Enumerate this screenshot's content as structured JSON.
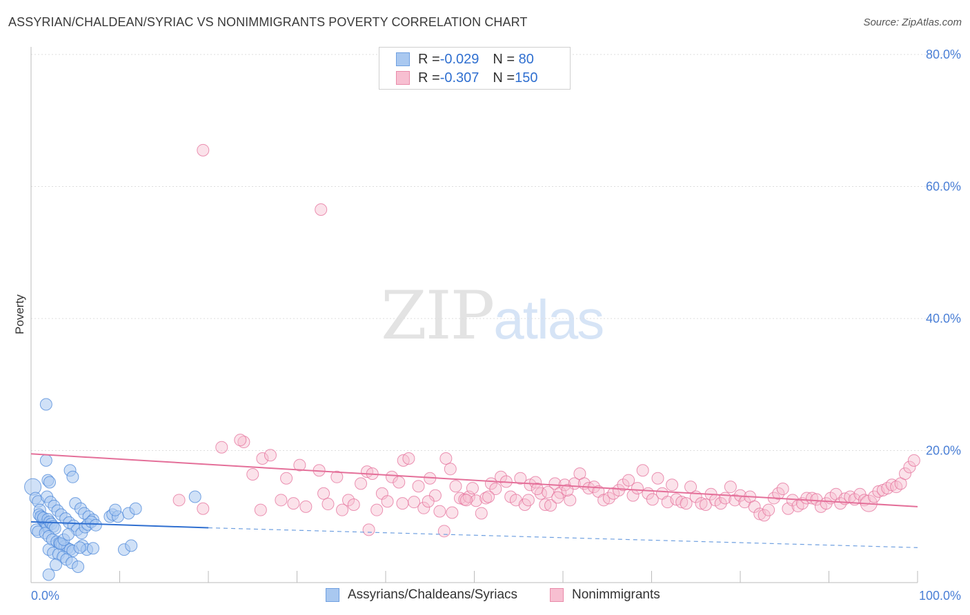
{
  "title": "ASSYRIAN/CHALDEAN/SYRIAC VS NONIMMIGRANTS POVERTY CORRELATION CHART",
  "source": "Source: ZipAtlas.com",
  "watermark": {
    "zip": "ZIP",
    "atlas": "atlas"
  },
  "legend": {
    "rows": [
      {
        "r_label": "R = ",
        "r_value": "-0.029",
        "n_label": "N = ",
        "n_value": " 80",
        "color": "#a9c8f0",
        "border": "#6e9fe0"
      },
      {
        "r_label": "R = ",
        "r_value": "-0.307",
        "n_label": "N = ",
        "n_value": "150",
        "color": "#f7bfd1",
        "border": "#e98aa9"
      }
    ]
  },
  "bottom_legend": [
    {
      "label": "Assyrians/Chaldeans/Syriacs",
      "color": "#a9c8f0",
      "border": "#6e9fe0"
    },
    {
      "label": "Nonimmigrants",
      "color": "#f7bfd1",
      "border": "#e98aa9"
    }
  ],
  "chart_data": {
    "type": "scatter",
    "title": "ASSYRIAN/CHALDEAN/SYRIAC VS NONIMMIGRANTS POVERTY CORRELATION CHART",
    "xlabel": "",
    "ylabel": "Poverty",
    "xlim": [
      0,
      100
    ],
    "ylim": [
      0,
      80
    ],
    "x_tick_labels": [
      {
        "value": 0,
        "label": "0.0%"
      },
      {
        "value": 100,
        "label": "100.0%"
      }
    ],
    "y_tick_labels": [
      {
        "value": 20,
        "label": "20.0%"
      },
      {
        "value": 40,
        "label": "40.0%"
      },
      {
        "value": 60,
        "label": "60.0%"
      },
      {
        "value": 80,
        "label": "80.0%"
      }
    ],
    "series": [
      {
        "name": "Assyrians/Chaldeans/Syriacs",
        "color": "#4a86d8",
        "fill": "rgba(169,200,240,0.55)",
        "trend": {
          "x0": 0,
          "y0": 9.2,
          "x1": 20,
          "y1": 8.3,
          "dash_to_x": 100,
          "dash_to_y": 5.3
        },
        "points": [
          [
            0.2,
            14.5
          ],
          [
            0.5,
            12.8
          ],
          [
            0.8,
            12.3
          ],
          [
            1.0,
            11.0
          ],
          [
            1.2,
            9.9
          ],
          [
            1.3,
            9.5
          ],
          [
            1.5,
            9.3
          ],
          [
            1.6,
            9.0
          ],
          [
            1.7,
            8.7
          ],
          [
            1.8,
            8.4
          ],
          [
            0.9,
            10.3
          ],
          [
            1.1,
            10.0
          ],
          [
            1.4,
            9.8
          ],
          [
            1.9,
            9.6
          ],
          [
            2.1,
            9.2
          ],
          [
            2.3,
            8.9
          ],
          [
            2.5,
            8.5
          ],
          [
            2.7,
            8.2
          ],
          [
            0.6,
            8.0
          ],
          [
            0.8,
            7.7
          ],
          [
            1.6,
            7.5
          ],
          [
            2.0,
            7.0
          ],
          [
            2.4,
            6.5
          ],
          [
            2.9,
            6.2
          ],
          [
            3.2,
            6.0
          ],
          [
            3.5,
            5.8
          ],
          [
            3.8,
            5.5
          ],
          [
            4.1,
            5.2
          ],
          [
            4.4,
            5.0
          ],
          [
            4.7,
            4.8
          ],
          [
            1.8,
            13.0
          ],
          [
            2.2,
            12.2
          ],
          [
            2.6,
            11.6
          ],
          [
            3.0,
            10.9
          ],
          [
            3.4,
            10.3
          ],
          [
            3.9,
            9.7
          ],
          [
            4.3,
            9.1
          ],
          [
            4.8,
            8.6
          ],
          [
            5.2,
            8.0
          ],
          [
            5.7,
            7.5
          ],
          [
            1.7,
            18.5
          ],
          [
            1.9,
            15.5
          ],
          [
            2.1,
            15.2
          ],
          [
            4.4,
            17.0
          ],
          [
            4.7,
            16.0
          ],
          [
            1.7,
            27.0
          ],
          [
            2.0,
            5.0
          ],
          [
            2.5,
            4.5
          ],
          [
            3.1,
            4.3
          ],
          [
            3.6,
            3.9
          ],
          [
            4.0,
            3.5
          ],
          [
            4.6,
            3.0
          ],
          [
            5.3,
            2.4
          ],
          [
            2.0,
            1.2
          ],
          [
            2.8,
            2.7
          ],
          [
            3.3,
            5.9
          ],
          [
            3.7,
            6.5
          ],
          [
            4.2,
            7.3
          ],
          [
            5.0,
            12.0
          ],
          [
            5.6,
            11.2
          ],
          [
            6.0,
            10.5
          ],
          [
            6.5,
            10.0
          ],
          [
            7.0,
            9.5
          ],
          [
            6.1,
            8.4
          ],
          [
            6.4,
            8.8
          ],
          [
            6.8,
            9.2
          ],
          [
            7.3,
            8.7
          ],
          [
            5.8,
            5.6
          ],
          [
            6.3,
            5.0
          ],
          [
            7.0,
            5.2
          ],
          [
            8.9,
            10.0
          ],
          [
            9.2,
            10.3
          ],
          [
            9.8,
            10.0
          ],
          [
            10.5,
            5.0
          ],
          [
            11.0,
            10.5
          ],
          [
            11.8,
            11.2
          ],
          [
            11.3,
            5.6
          ],
          [
            9.5,
            11.0
          ],
          [
            18.5,
            13.0
          ],
          [
            5.5,
            5.3
          ]
        ]
      },
      {
        "name": "Nonimmigrants",
        "color": "#e46f99",
        "fill": "rgba(247,191,209,0.45)",
        "trend": {
          "x0": 0,
          "y0": 19.5,
          "x1": 100,
          "y1": 11.5
        },
        "points": [
          [
            19.4,
            65.5
          ],
          [
            32.7,
            56.5
          ],
          [
            21.5,
            20.5
          ],
          [
            24.0,
            21.3
          ],
          [
            25.0,
            16.4
          ],
          [
            26.1,
            18.8
          ],
          [
            27.0,
            19.3
          ],
          [
            28.2,
            12.5
          ],
          [
            28.8,
            15.8
          ],
          [
            30.3,
            17.8
          ],
          [
            31.0,
            11.5
          ],
          [
            32.5,
            17.0
          ],
          [
            33.0,
            13.5
          ],
          [
            34.5,
            16.0
          ],
          [
            35.1,
            11.0
          ],
          [
            35.8,
            12.5
          ],
          [
            36.4,
            11.8
          ],
          [
            37.2,
            15.0
          ],
          [
            37.9,
            16.8
          ],
          [
            38.5,
            16.5
          ],
          [
            39.0,
            11.0
          ],
          [
            39.6,
            13.5
          ],
          [
            40.2,
            12.3
          ],
          [
            40.7,
            16.0
          ],
          [
            41.5,
            15.2
          ],
          [
            42.0,
            18.5
          ],
          [
            42.6,
            18.8
          ],
          [
            43.2,
            12.2
          ],
          [
            43.7,
            14.6
          ],
          [
            44.3,
            11.3
          ],
          [
            45.0,
            15.8
          ],
          [
            45.6,
            13.2
          ],
          [
            46.1,
            10.8
          ],
          [
            46.8,
            18.8
          ],
          [
            47.3,
            17.2
          ],
          [
            47.9,
            14.6
          ],
          [
            48.4,
            12.8
          ],
          [
            48.9,
            12.6
          ],
          [
            49.4,
            13.0
          ],
          [
            49.8,
            14.3
          ],
          [
            50.2,
            12.4
          ],
          [
            50.8,
            10.5
          ],
          [
            51.3,
            12.8
          ],
          [
            51.9,
            15.0
          ],
          [
            52.4,
            14.2
          ],
          [
            53.0,
            16.0
          ],
          [
            53.6,
            15.3
          ],
          [
            54.1,
            13.0
          ],
          [
            54.7,
            12.5
          ],
          [
            55.2,
            15.8
          ],
          [
            55.7,
            11.8
          ],
          [
            56.3,
            14.8
          ],
          [
            56.9,
            15.2
          ],
          [
            57.5,
            13.5
          ],
          [
            58.0,
            11.8
          ],
          [
            58.6,
            11.7
          ],
          [
            59.1,
            15.0
          ],
          [
            59.7,
            13.6
          ],
          [
            60.2,
            14.8
          ],
          [
            60.8,
            12.5
          ],
          [
            61.3,
            15.0
          ],
          [
            61.9,
            16.5
          ],
          [
            62.4,
            15.0
          ],
          [
            62.9,
            14.3
          ],
          [
            63.5,
            14.5
          ],
          [
            64.0,
            13.8
          ],
          [
            64.6,
            12.5
          ],
          [
            65.2,
            12.8
          ],
          [
            65.7,
            13.5
          ],
          [
            66.3,
            14.0
          ],
          [
            66.8,
            14.8
          ],
          [
            67.4,
            15.5
          ],
          [
            67.9,
            13.2
          ],
          [
            68.4,
            14.3
          ],
          [
            69.0,
            17.0
          ],
          [
            69.6,
            13.5
          ],
          [
            70.1,
            12.6
          ],
          [
            70.7,
            15.8
          ],
          [
            71.2,
            13.5
          ],
          [
            71.8,
            12.2
          ],
          [
            72.3,
            14.8
          ],
          [
            72.8,
            12.6
          ],
          [
            73.4,
            12.2
          ],
          [
            73.9,
            12.0
          ],
          [
            74.4,
            14.5
          ],
          [
            75.0,
            13.0
          ],
          [
            75.6,
            12.0
          ],
          [
            76.1,
            11.8
          ],
          [
            76.7,
            13.4
          ],
          [
            77.2,
            12.5
          ],
          [
            77.8,
            12.0
          ],
          [
            78.3,
            12.8
          ],
          [
            78.9,
            14.5
          ],
          [
            79.4,
            12.5
          ],
          [
            80.0,
            13.2
          ],
          [
            80.5,
            12.2
          ],
          [
            81.1,
            13.0
          ],
          [
            81.6,
            11.5
          ],
          [
            82.2,
            10.4
          ],
          [
            82.7,
            10.2
          ],
          [
            83.2,
            11.0
          ],
          [
            83.8,
            12.8
          ],
          [
            84.3,
            13.5
          ],
          [
            84.8,
            14.2
          ],
          [
            85.4,
            11.2
          ],
          [
            85.9,
            12.5
          ],
          [
            86.5,
            11.6
          ],
          [
            87.0,
            12.0
          ],
          [
            87.5,
            12.8
          ],
          [
            88.1,
            12.8
          ],
          [
            88.6,
            12.6
          ],
          [
            89.1,
            11.5
          ],
          [
            89.7,
            12.0
          ],
          [
            90.2,
            12.8
          ],
          [
            90.8,
            13.4
          ],
          [
            91.3,
            12.0
          ],
          [
            91.8,
            12.7
          ],
          [
            92.4,
            13.0
          ],
          [
            92.9,
            12.6
          ],
          [
            93.5,
            13.4
          ],
          [
            94.0,
            12.5
          ],
          [
            94.5,
            12.0
          ],
          [
            95.1,
            13.0
          ],
          [
            95.6,
            13.8
          ],
          [
            96.1,
            14.0
          ],
          [
            96.6,
            14.3
          ],
          [
            97.1,
            14.8
          ],
          [
            97.6,
            14.5
          ],
          [
            98.1,
            15.0
          ],
          [
            98.6,
            16.5
          ],
          [
            99.1,
            17.5
          ],
          [
            99.6,
            18.5
          ],
          [
            19.4,
            11.2
          ],
          [
            23.6,
            21.6
          ],
          [
            25.9,
            11.0
          ],
          [
            29.6,
            12.0
          ],
          [
            33.5,
            11.9
          ],
          [
            38.1,
            8.0
          ],
          [
            41.9,
            12.0
          ],
          [
            44.8,
            12.3
          ],
          [
            46.6,
            7.8
          ],
          [
            16.7,
            12.5
          ],
          [
            47.5,
            10.6
          ],
          [
            49.1,
            12.5
          ],
          [
            51.6,
            13.0
          ],
          [
            56.1,
            12.5
          ],
          [
            57.1,
            14.2
          ],
          [
            58.3,
            13.7
          ],
          [
            59.4,
            12.9
          ],
          [
            60.5,
            14.0
          ]
        ]
      }
    ]
  }
}
